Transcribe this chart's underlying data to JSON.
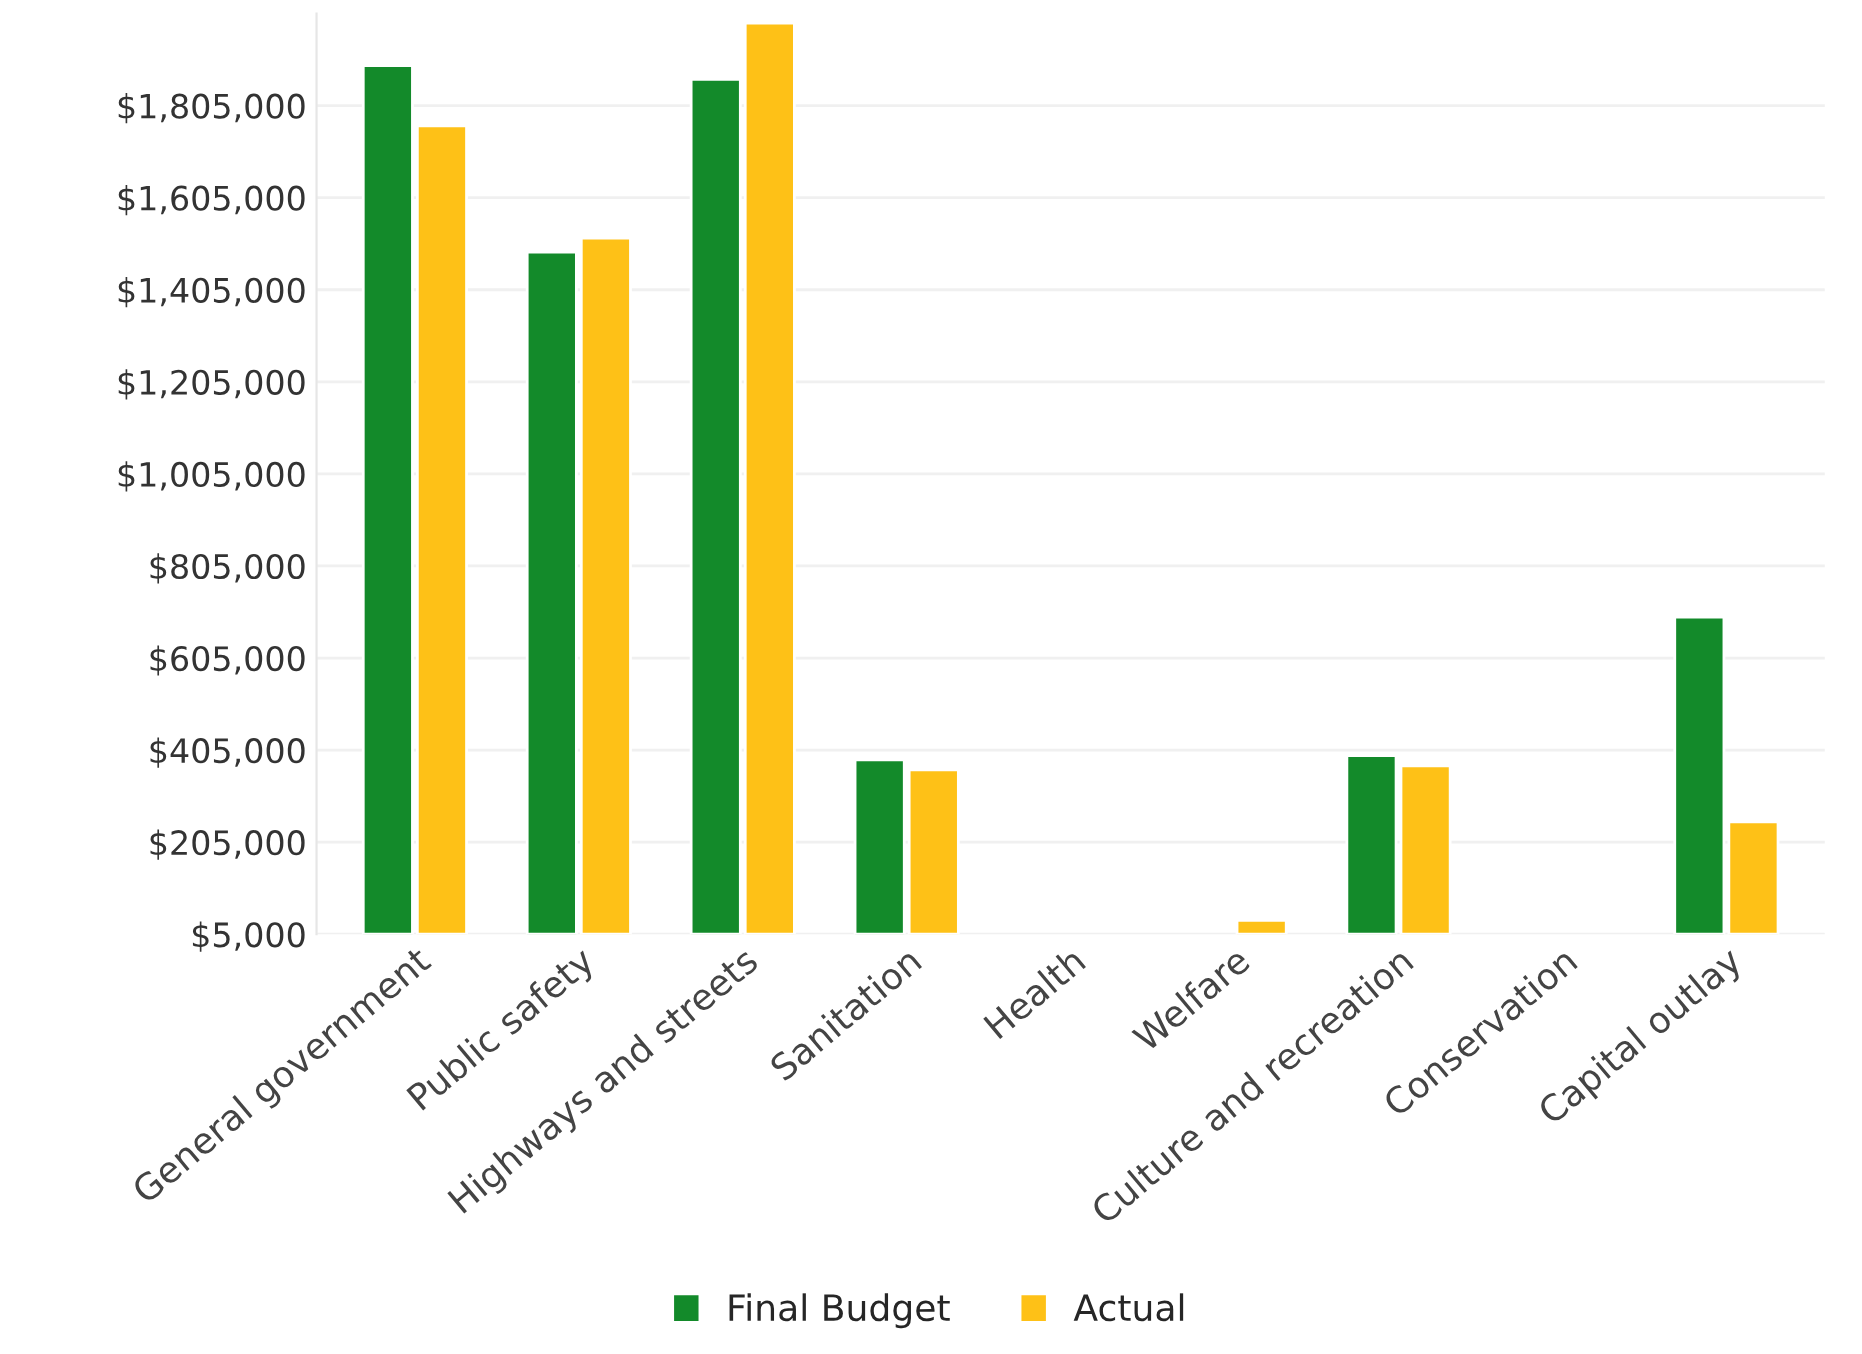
{
  "chart_data": {
    "type": "bar",
    "categories": [
      "General government",
      "Public safety",
      "Highways and streets",
      "Sanitation",
      "Health",
      "Welfare",
      "Culture and recreation",
      "Conservation",
      "Capital outlay"
    ],
    "series": [
      {
        "name": "Final Budget",
        "color": "#138a2a",
        "values": [
          1892000,
          1487000,
          1862000,
          384000,
          null,
          null,
          393000,
          null,
          694000
        ]
      },
      {
        "name": "Actual",
        "color": "#fec117",
        "values": [
          1761000,
          1517000,
          1984000,
          362000,
          null,
          35000,
          371000,
          null,
          249000
        ]
      }
    ],
    "ylim": [
      5000,
      2005000
    ],
    "yticks": [
      {
        "value": 5000,
        "label": "$5,000"
      },
      {
        "value": 205000,
        "label": "$205,000"
      },
      {
        "value": 405000,
        "label": "$405,000"
      },
      {
        "value": 605000,
        "label": "$605,000"
      },
      {
        "value": 805000,
        "label": "$805,000"
      },
      {
        "value": 1005000,
        "label": "$1,005,000"
      },
      {
        "value": 1205000,
        "label": "$1,205,000"
      },
      {
        "value": 1405000,
        "label": "$1,405,000"
      },
      {
        "value": 1605000,
        "label": "$1,605,000"
      },
      {
        "value": 1805000,
        "label": "$1,805,000"
      }
    ],
    "grid": "y",
    "legend": "bottom"
  }
}
